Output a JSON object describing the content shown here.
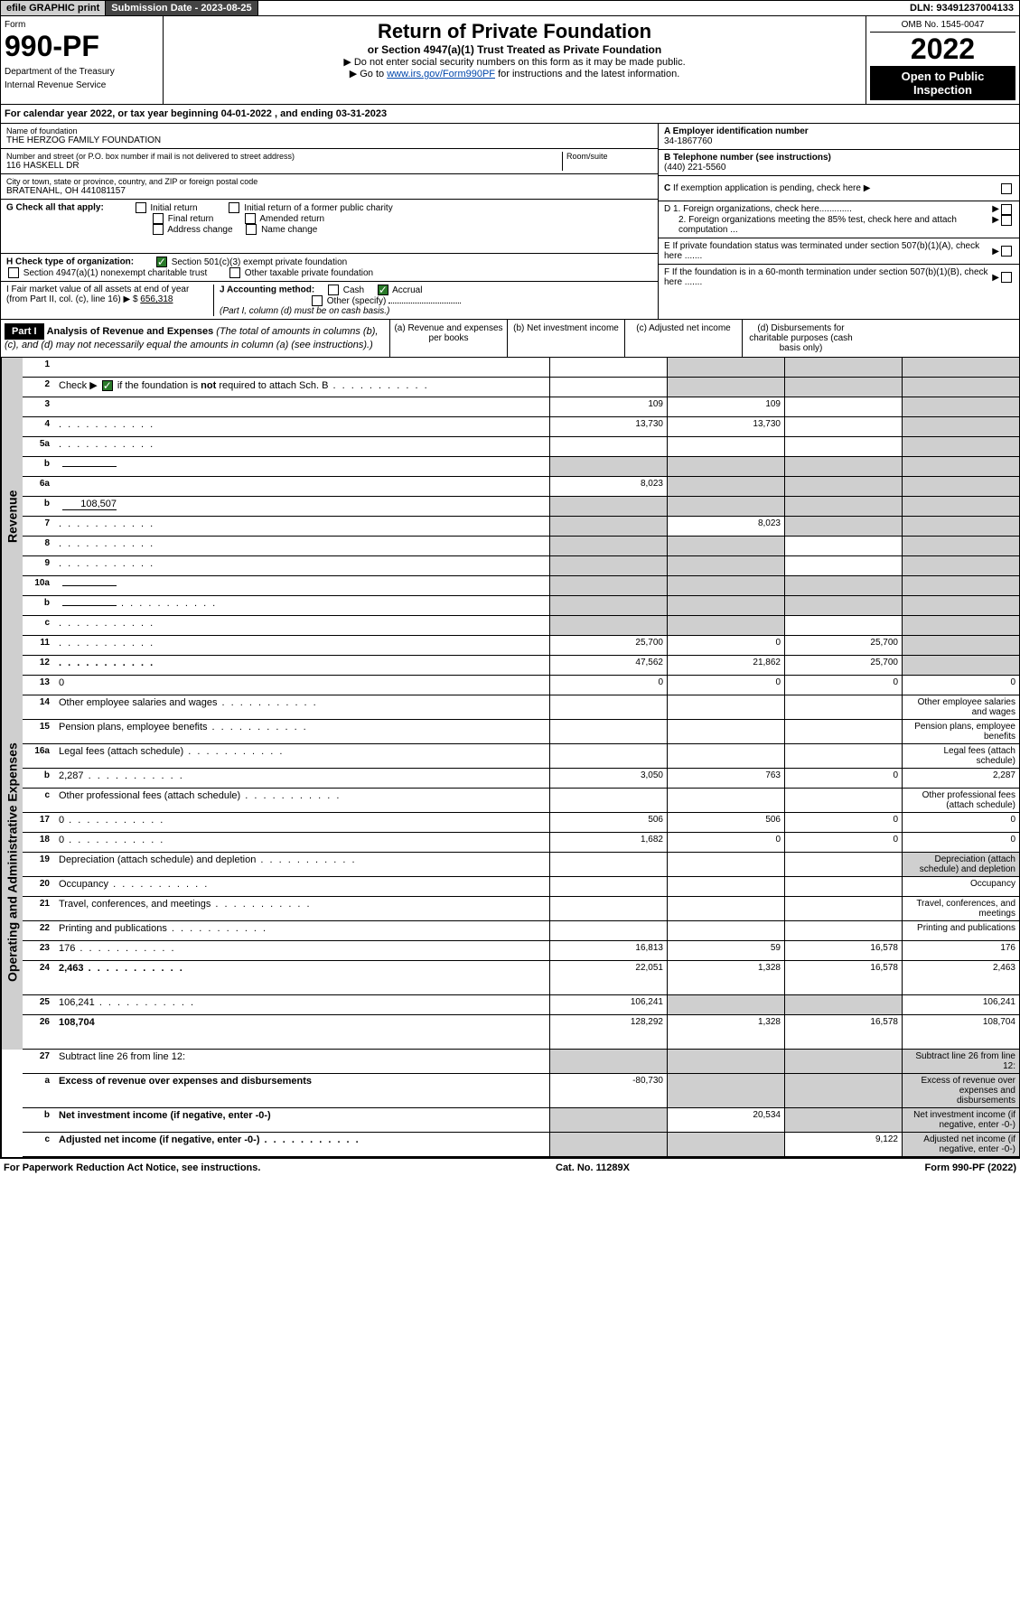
{
  "top": {
    "efile": "efile GRAPHIC print",
    "sub_label": "Submission Date - 2023-08-25",
    "dln": "DLN: 93491237004133"
  },
  "header": {
    "form_word": "Form",
    "form_num": "990-PF",
    "dept1": "Department of the Treasury",
    "dept2": "Internal Revenue Service",
    "title": "Return of Private Foundation",
    "subtitle": "or Section 4947(a)(1) Trust Treated as Private Foundation",
    "note1": "▶ Do not enter social security numbers on this form as it may be made public.",
    "note2_pre": "▶ Go to ",
    "note2_link": "www.irs.gov/Form990PF",
    "note2_post": " for instructions and the latest information.",
    "omb": "OMB No. 1545-0047",
    "year": "2022",
    "open": "Open to Public Inspection"
  },
  "cal_year": "For calendar year 2022, or tax year beginning 04-01-2022                            , and ending 03-31-2023",
  "entity": {
    "name_label": "Name of foundation",
    "name": "THE HERZOG FAMILY FOUNDATION",
    "addr_label": "Number and street (or P.O. box number if mail is not delivered to street address)",
    "addr": "116 HASKELL DR",
    "room_label": "Room/suite",
    "city_label": "City or town, state or province, country, and ZIP or foreign postal code",
    "city": "BRATENAHL, OH  441081157",
    "ein_label": "A Employer identification number",
    "ein": "34-1867760",
    "phone_label": "B Telephone number (see instructions)",
    "phone": "(440) 221-5560",
    "c_label": "C If exemption application is pending, check here",
    "d1": "D 1. Foreign organizations, check here.............",
    "d2": "2. Foreign organizations meeting the 85% test, check here and attach computation ...",
    "e_label": "E  If private foundation status was terminated under section 507(b)(1)(A), check here .......",
    "f_label": "F  If the foundation is in a 60-month termination under section 507(b)(1)(B), check here .......",
    "g_label": "G Check all that apply:",
    "g_initial": "Initial return",
    "g_initial_former": "Initial return of a former public charity",
    "g_final": "Final return",
    "g_amended": "Amended return",
    "g_address": "Address change",
    "g_name": "Name change",
    "h_label": "H Check type of organization:",
    "h_501c3": "Section 501(c)(3) exempt private foundation",
    "h_4947": "Section 4947(a)(1) nonexempt charitable trust",
    "h_other": "Other taxable private foundation",
    "i_label": "I Fair market value of all assets at end of year (from Part II, col. (c), line 16) ▶ $",
    "i_value": "656,318",
    "j_label": "J Accounting method:",
    "j_cash": "Cash",
    "j_accrual": "Accrual",
    "j_other": "Other (specify)",
    "j_note": "(Part I, column (d) must be on cash basis.)"
  },
  "part1": {
    "label": "Part I",
    "title": "Analysis of Revenue and Expenses",
    "title_note": " (The total of amounts in columns (b), (c), and (d) may not necessarily equal the amounts in column (a) (see instructions).)",
    "col_a": "(a)    Revenue and expenses per books",
    "col_b": "(b)    Net investment income",
    "col_c": "(c)    Adjusted net income",
    "col_d": "(d)    Disbursements for charitable purposes (cash basis only)"
  },
  "sections": {
    "revenue": "Revenue",
    "opex": "Operating and Administrative Expenses"
  },
  "lines": [
    {
      "n": "1",
      "d": "",
      "a": "",
      "b": "",
      "c": "",
      "ga": false,
      "gb": true,
      "gc": true,
      "gd": true
    },
    {
      "n": "2",
      "d": "",
      "a": "",
      "b": "",
      "c": "",
      "ga": false,
      "gb": true,
      "gc": true,
      "gd": true,
      "check": true,
      "dots": true
    },
    {
      "n": "3",
      "d": "",
      "a": "109",
      "b": "109",
      "c": "",
      "gd": true
    },
    {
      "n": "4",
      "d": "",
      "a": "13,730",
      "b": "13,730",
      "c": "",
      "gd": true,
      "dots": true
    },
    {
      "n": "5a",
      "d": "",
      "a": "",
      "b": "",
      "c": "",
      "gd": true,
      "dots": true
    },
    {
      "n": "b",
      "d": "",
      "a": "",
      "b": "",
      "c": "",
      "ga": true,
      "gb": true,
      "gc": true,
      "gd": true,
      "inline": true
    },
    {
      "n": "6a",
      "d": "",
      "a": "8,023",
      "b": "",
      "c": "",
      "gb": true,
      "gc": true,
      "gd": true
    },
    {
      "n": "b",
      "d": "",
      "a": "",
      "b": "",
      "c": "",
      "ga": true,
      "gb": true,
      "gc": true,
      "gd": true,
      "inline": true,
      "inline_val": "108,507"
    },
    {
      "n": "7",
      "d": "",
      "a": "",
      "b": "8,023",
      "c": "",
      "ga": true,
      "gc": true,
      "gd": true,
      "dots": true
    },
    {
      "n": "8",
      "d": "",
      "a": "",
      "b": "",
      "c": "",
      "ga": true,
      "gb": true,
      "gd": true,
      "dots": true
    },
    {
      "n": "9",
      "d": "",
      "a": "",
      "b": "",
      "c": "",
      "ga": true,
      "gb": true,
      "gd": true,
      "dots": true
    },
    {
      "n": "10a",
      "d": "",
      "a": "",
      "b": "",
      "c": "",
      "ga": true,
      "gb": true,
      "gc": true,
      "gd": true,
      "inline": true
    },
    {
      "n": "b",
      "d": "",
      "a": "",
      "b": "",
      "c": "",
      "ga": true,
      "gb": true,
      "gc": true,
      "gd": true,
      "inline": true,
      "dots": true
    },
    {
      "n": "c",
      "d": "",
      "a": "",
      "b": "",
      "c": "",
      "ga": true,
      "gb": true,
      "gd": true,
      "dots": true
    },
    {
      "n": "11",
      "d": "",
      "a": "25,700",
      "b": "0",
      "c": "25,700",
      "gd": true,
      "dots": true
    },
    {
      "n": "12",
      "d": "",
      "a": "47,562",
      "b": "21,862",
      "c": "25,700",
      "gd": true,
      "bold": true,
      "dots": true
    }
  ],
  "exp_lines": [
    {
      "n": "13",
      "d": "0",
      "a": "0",
      "b": "0",
      "c": "0"
    },
    {
      "n": "14",
      "d": "Other employee salaries and wages",
      "dots": true
    },
    {
      "n": "15",
      "d": "Pension plans, employee benefits",
      "dots": true
    },
    {
      "n": "16a",
      "d": "Legal fees (attach schedule)",
      "dots": true
    },
    {
      "n": "b",
      "d": "2,287",
      "a": "3,050",
      "b": "763",
      "c": "0",
      "dots": true
    },
    {
      "n": "c",
      "d": "Other professional fees (attach schedule)",
      "dots": true
    },
    {
      "n": "17",
      "d": "0",
      "a": "506",
      "b": "506",
      "c": "0",
      "dots": true
    },
    {
      "n": "18",
      "d": "0",
      "a": "1,682",
      "b": "0",
      "c": "0",
      "dots": true
    },
    {
      "n": "19",
      "d": "Depreciation (attach schedule) and depletion",
      "gd": true,
      "dots": true
    },
    {
      "n": "20",
      "d": "Occupancy",
      "dots": true
    },
    {
      "n": "21",
      "d": "Travel, conferences, and meetings",
      "dots": true
    },
    {
      "n": "22",
      "d": "Printing and publications",
      "dots": true
    },
    {
      "n": "23",
      "d": "176",
      "a": "16,813",
      "b": "59",
      "c": "16,578",
      "dots": true
    },
    {
      "n": "24",
      "d": "2,463",
      "a": "22,051",
      "b": "1,328",
      "c": "16,578",
      "bold": true,
      "dots": true,
      "tall": true
    },
    {
      "n": "25",
      "d": "106,241",
      "a": "106,241",
      "b": "",
      "c": "",
      "gb": true,
      "gc": true,
      "dots": true
    },
    {
      "n": "26",
      "d": "108,704",
      "a": "128,292",
      "b": "1,328",
      "c": "16,578",
      "bold": true,
      "tall": true
    }
  ],
  "bottom_lines": [
    {
      "n": "27",
      "d": "Subtract line 26 from line 12:",
      "ga": true,
      "gb": true,
      "gc": true,
      "gd": true
    },
    {
      "n": "a",
      "d": "Excess of revenue over expenses and disbursements",
      "a": "-80,730",
      "gb": true,
      "gc": true,
      "gd": true,
      "bold": true
    },
    {
      "n": "b",
      "d": "Net investment income (if negative, enter -0-)",
      "b": "20,534",
      "ga": true,
      "gc": true,
      "gd": true,
      "bold": true
    },
    {
      "n": "c",
      "d": "Adjusted net income (if negative, enter -0-)",
      "c": "9,122",
      "ga": true,
      "gb": true,
      "gd": true,
      "bold": true,
      "dots": true
    }
  ],
  "footer": {
    "left": "For Paperwork Reduction Act Notice, see instructions.",
    "mid": "Cat. No. 11289X",
    "right": "Form 990-PF (2022)"
  }
}
